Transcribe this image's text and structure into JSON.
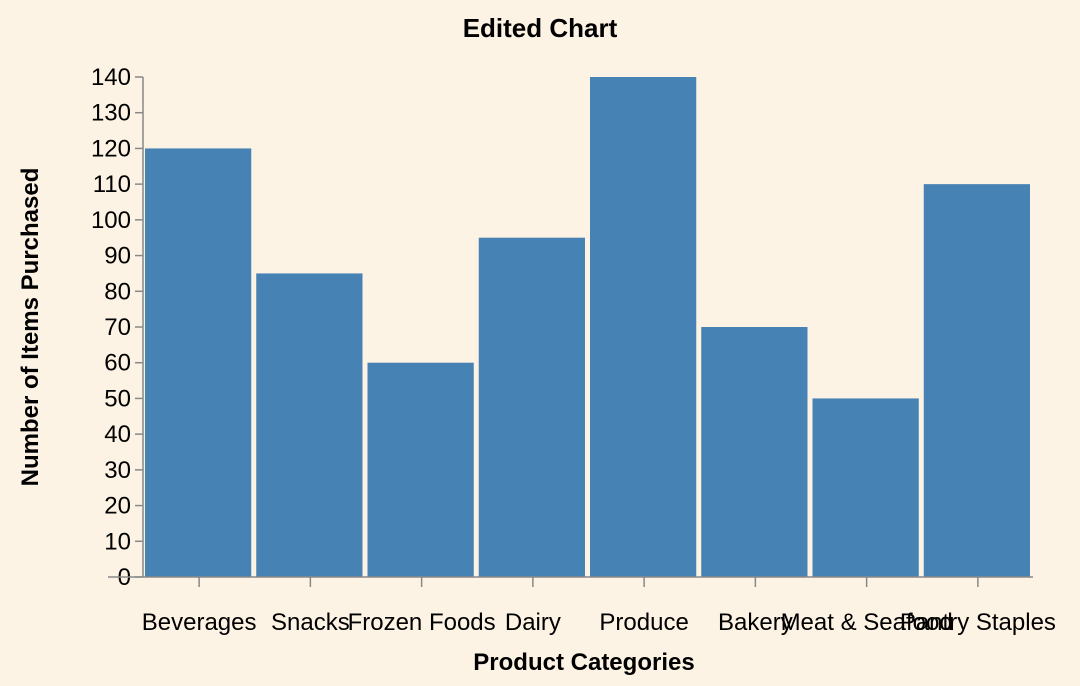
{
  "chart_data": {
    "type": "bar",
    "title": "Edited Chart",
    "xlabel": "Product Categories",
    "ylabel": "Number of Items Purchased",
    "categories": [
      "Beverages",
      "Snacks",
      "Frozen Foods",
      "Dairy",
      "Produce",
      "Bakery",
      "Meat & Seafood",
      "Pantry Staples"
    ],
    "values": [
      120,
      85,
      60,
      95,
      140,
      70,
      50,
      110
    ],
    "ylim": [
      0,
      140
    ],
    "yticks": [
      0,
      10,
      20,
      30,
      40,
      50,
      60,
      70,
      80,
      90,
      100,
      110,
      120,
      130,
      140
    ],
    "grid": false,
    "colors": {
      "bar": "#4682b4",
      "background": "#fdf3e4",
      "axis": "#888888"
    }
  }
}
